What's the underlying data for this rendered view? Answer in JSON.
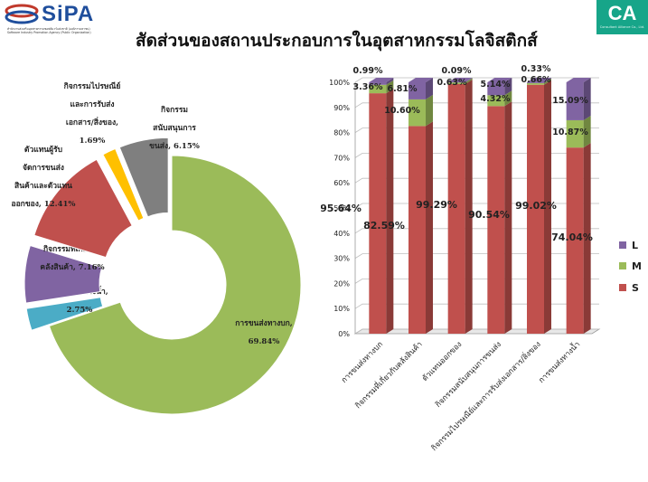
{
  "header": {
    "logo_text": "SiPA",
    "logo_sub1": "สำนักงานส่งเสริมอุตสาหกรรมซอฟต์แวร์แห่งชาติ (องค์การมหาชน)",
    "logo_sub2": "Software Industry Promotion Agency (Public Organization)",
    "ca_text": "CA",
    "ca_sub": "Consultant Alliance Co., Ltd."
  },
  "title": "สัดส่วนของสถานประกอบการในอุตสาหกรรมโลจิสติกส์",
  "chart_data": [
    {
      "type": "pie",
      "variant": "exploded-doughnut",
      "slices": [
        {
          "label_lines": [
            "การขนส่งทางบก,",
            "69.84%"
          ],
          "value": 69.84,
          "color": "#9bbb59"
        },
        {
          "label_lines": [
            "การขนส่งทางน้ำ,",
            "2.75%"
          ],
          "value": 2.75,
          "color": "#4bacc6"
        },
        {
          "label_lines": [
            "กิจกรรมที่เกี่ยวกับ",
            "คลังสินค้า, 7.16%"
          ],
          "value": 7.16,
          "color": "#8064a2"
        },
        {
          "label_lines": [
            "ตัวแทนผู้รับ",
            "จัดการขนส่ง",
            "สินค้าและตัวแทน",
            "ออกของ, 12.41%"
          ],
          "value": 12.41,
          "color": "#c0504d"
        },
        {
          "label_lines": [
            "กิจกรรมไปรษณีย์",
            "และการรับส่ง",
            "เอกสาร/สิ่งของ,",
            "1.69%"
          ],
          "value": 1.69,
          "color": "#ffc000"
        },
        {
          "label_lines": [
            "กิจกรรม",
            "สนับสนุนการ",
            "ขนส่ง, 6.15%"
          ],
          "value": 6.15,
          "color": "#7f7f7f"
        }
      ]
    },
    {
      "type": "bar",
      "stacked": "percent",
      "categories": [
        "การขนส่งทางบก",
        "กิจกรรมที่เกี่ยวกับคลังสินค้า",
        "ตัวแทนออกของ",
        "กิจกรรมสนับสนุนการขนส่ง",
        "กิจกรรมไปรษณีย์และการรับส่งเอกสาร/สิ่งของ",
        "การขนส่งทางน้ำ"
      ],
      "series": [
        {
          "name": "S",
          "color": "#c0504d",
          "values": [
            95.64,
            82.59,
            99.29,
            90.54,
            99.02,
            74.04
          ],
          "labels": [
            "95.64%",
            "82.59%",
            "99.29%",
            "90.54%",
            "99.02%",
            "74.04%"
          ]
        },
        {
          "name": "M",
          "color": "#9bbb59",
          "values": [
            3.36,
            10.6,
            0.63,
            4.32,
            0.66,
            10.87
          ],
          "labels": [
            "3.36%",
            "10.60%",
            "0.63%",
            "4.32%",
            "0.66%",
            "10.87%"
          ]
        },
        {
          "name": "L",
          "color": "#8064a2",
          "values": [
            0.99,
            6.81,
            0.09,
            5.14,
            0.33,
            15.09
          ],
          "labels": [
            "0.99%",
            "6.81%",
            "0.09%",
            "5.14%",
            "0.33%",
            "15.09%"
          ]
        }
      ],
      "y_ticks": [
        "0%",
        "10%",
        "20%",
        "30%",
        "40%",
        "50%",
        "60%",
        "70%",
        "80%",
        "90%",
        "100%"
      ],
      "ylim": [
        0,
        100
      ],
      "legend": "right",
      "legend_order": [
        "L",
        "M",
        "S"
      ]
    }
  ]
}
